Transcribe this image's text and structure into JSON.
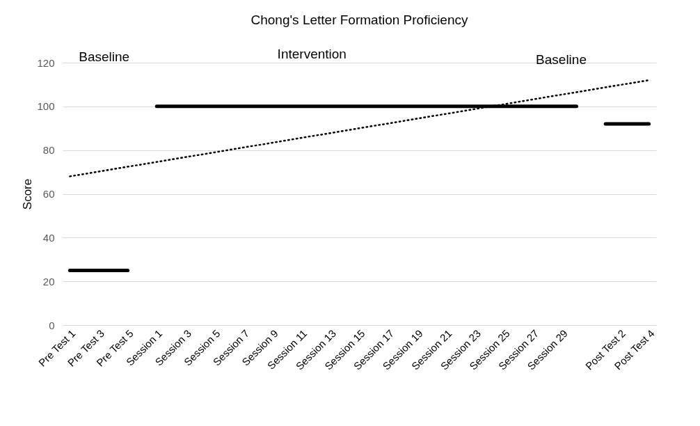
{
  "chart_data": {
    "type": "line",
    "title": "Chong's Letter Formation Proficiency",
    "ylabel": "Score",
    "categories": [
      "Pre Test 1",
      null,
      "Pre Test 3",
      null,
      "Pre Test 5",
      null,
      "Session 1",
      null,
      "Session 3",
      null,
      "Session 5",
      null,
      "Session 7",
      null,
      "Session 9",
      null,
      "Session 11",
      null,
      "Session 13",
      null,
      "Session 15",
      null,
      "Session 17",
      null,
      "Session 19",
      null,
      "Session 21",
      null,
      "Session 23",
      null,
      "Session 25",
      null,
      "Session 27",
      null,
      "Session 29",
      null,
      null,
      null,
      "Post Test 2",
      null,
      "Post Test 4"
    ],
    "series": [
      {
        "color": "#000000",
        "line_style": "solid",
        "values": [
          25,
          25,
          25,
          25,
          25,
          null,
          100,
          100,
          100,
          100,
          100,
          100,
          100,
          100,
          100,
          100,
          100,
          100,
          100,
          100,
          100,
          100,
          100,
          100,
          100,
          100,
          100,
          100,
          100,
          100,
          100,
          100,
          100,
          100,
          100,
          100,
          null,
          92,
          92,
          92,
          92
        ]
      },
      {
        "type": "line",
        "color": "#000000",
        "line_style": "dotted",
        "x": [
          "Pre Test 1",
          "Post Test 4"
        ],
        "values": [
          68,
          112
        ]
      }
    ],
    "ylim": [
      0,
      120
    ],
    "yticks": [
      0,
      20,
      40,
      60,
      80,
      100,
      120
    ],
    "grid": "y",
    "marker": "none",
    "annotations": [
      "Baseline",
      "Intervention",
      "Baseline"
    ]
  }
}
